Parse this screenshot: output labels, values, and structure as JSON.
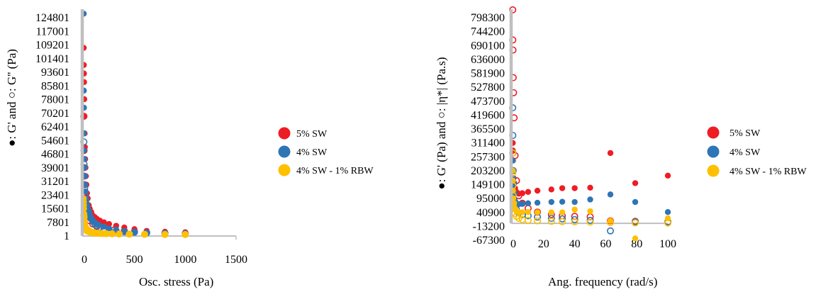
{
  "chart_data": [
    {
      "type": "scatter",
      "xlabel": "Osc. stress (Pa)",
      "ylabel": "●: G' and ○: G'' (Pa)",
      "xlim": [
        0,
        1500
      ],
      "ylim": [
        1,
        132601
      ],
      "x_ticks": [
        "0",
        "500",
        "1000",
        "1500"
      ],
      "y_ticks": [
        "1",
        "7801",
        "15601",
        "23401",
        "31201",
        "39001",
        "46801",
        "54601",
        "62401",
        "70201",
        "78001",
        "85801",
        "93601",
        "101401",
        "109201",
        "117001",
        "124801"
      ],
      "legend": "right",
      "series": [
        {
          "name": "5% SW",
          "color": "#ee1c25",
          "filled": [
            [
              1,
              110000
            ],
            [
              2,
              100000
            ],
            [
              3,
              95000
            ],
            [
              4,
              90000
            ],
            [
              6,
              80000
            ],
            [
              8,
              70000
            ],
            [
              10,
              60000
            ],
            [
              12,
              52000
            ],
            [
              15,
              45000
            ],
            [
              18,
              40000
            ],
            [
              22,
              35000
            ],
            [
              27,
              30000
            ],
            [
              33,
              25000
            ],
            [
              40,
              22000
            ],
            [
              50,
              18000
            ],
            [
              60,
              16000
            ],
            [
              75,
              14000
            ],
            [
              90,
              12000
            ],
            [
              110,
              11000
            ],
            [
              130,
              10000
            ],
            [
              160,
              9000
            ],
            [
              200,
              8000
            ],
            [
              250,
              7000
            ],
            [
              320,
              6000
            ],
            [
              400,
              5000
            ],
            [
              500,
              4000
            ],
            [
              620,
              3000
            ],
            [
              800,
              2500
            ],
            [
              1000,
              2200
            ]
          ],
          "hollow": [
            [
              2,
              70000
            ],
            [
              4,
              50000
            ],
            [
              6,
              40000
            ],
            [
              10,
              30000
            ],
            [
              15,
              22000
            ],
            [
              22,
              17000
            ],
            [
              30,
              14000
            ],
            [
              45,
              11000
            ],
            [
              60,
              9000
            ],
            [
              90,
              7000
            ],
            [
              130,
              5500
            ],
            [
              200,
              4500
            ],
            [
              300,
              3500
            ],
            [
              400,
              3000
            ],
            [
              500,
              2500
            ],
            [
              620,
              2000
            ],
            [
              800,
              1700
            ],
            [
              1000,
              1500
            ]
          ]
        },
        {
          "name": "4% SW",
          "color": "#2e75b6",
          "filled": [
            [
              1,
              130000
            ],
            [
              2,
              85000
            ],
            [
              3,
              75000
            ],
            [
              4,
              60000
            ],
            [
              5,
              50000
            ],
            [
              7,
              45000
            ],
            [
              10,
              40000
            ],
            [
              12,
              35000
            ],
            [
              15,
              30000
            ],
            [
              20,
              26000
            ],
            [
              25,
              22000
            ],
            [
              30,
              19000
            ],
            [
              40,
              17000
            ],
            [
              50,
              15000
            ],
            [
              60,
              13000
            ],
            [
              70,
              11000
            ],
            [
              80,
              10000
            ],
            [
              100,
              8500
            ],
            [
              120,
              7500
            ],
            [
              150,
              6500
            ],
            [
              200,
              5500
            ],
            [
              250,
              4500
            ],
            [
              320,
              3800
            ],
            [
              400,
              3000
            ],
            [
              500,
              2500
            ],
            [
              620,
              2000
            ],
            [
              800,
              1800
            ],
            [
              1000,
              1600
            ]
          ],
          "hollow": [
            [
              2,
              55000
            ],
            [
              4,
              42000
            ],
            [
              6,
              35000
            ],
            [
              10,
              28000
            ],
            [
              14,
              24000
            ],
            [
              20,
              21000
            ],
            [
              30,
              18000
            ],
            [
              40,
              15000
            ],
            [
              50,
              13000
            ],
            [
              60,
              11500
            ],
            [
              75,
              10000
            ],
            [
              90,
              8500
            ],
            [
              110,
              7000
            ],
            [
              130,
              6000
            ],
            [
              160,
              5000
            ],
            [
              200,
              4200
            ],
            [
              250,
              3500
            ],
            [
              320,
              3000
            ],
            [
              400,
              2500
            ],
            [
              500,
              2200
            ],
            [
              620,
              1800
            ],
            [
              800,
              1500
            ],
            [
              1000,
              1300
            ]
          ]
        },
        {
          "name": "4% SW - 1% RBW",
          "color": "#ffc000",
          "filled": [
            [
              1,
              22000
            ],
            [
              2,
              20000
            ],
            [
              3,
              18000
            ],
            [
              4,
              16000
            ],
            [
              6,
              13000
            ],
            [
              8,
              11000
            ],
            [
              10,
              9000
            ],
            [
              15,
              7000
            ],
            [
              20,
              5500
            ],
            [
              30,
              4500
            ],
            [
              40,
              3800
            ],
            [
              55,
              3200
            ],
            [
              70,
              2800
            ],
            [
              90,
              2400
            ],
            [
              110,
              2100
            ],
            [
              140,
              1900
            ],
            [
              180,
              1700
            ],
            [
              220,
              1500
            ],
            [
              280,
              1400
            ],
            [
              350,
              1200
            ],
            [
              450,
              1100
            ],
            [
              600,
              1000
            ],
            [
              800,
              900
            ],
            [
              1000,
              800
            ]
          ],
          "hollow": [
            [
              2,
              12000
            ],
            [
              4,
              9000
            ],
            [
              6,
              7000
            ],
            [
              10,
              5500
            ],
            [
              15,
              4500
            ],
            [
              20,
              3800
            ],
            [
              30,
              3200
            ],
            [
              40,
              2800
            ],
            [
              55,
              2500
            ],
            [
              70,
              2200
            ],
            [
              90,
              2000
            ],
            [
              110,
              1800
            ],
            [
              140,
              1600
            ],
            [
              180,
              1500
            ],
            [
              220,
              1400
            ],
            [
              280,
              1300
            ],
            [
              350,
              1200
            ],
            [
              450,
              1100
            ],
            [
              600,
              1000
            ],
            [
              800,
              950
            ],
            [
              1000,
              900
            ]
          ]
        }
      ]
    },
    {
      "type": "scatter",
      "xlabel": "Ang. frequency (rad/s)",
      "ylabel": "●: G' (Pa) and ○: |η*| (Pa.s)",
      "xlim": [
        0,
        100
      ],
      "ylim": [
        -67300,
        852400
      ],
      "x_ticks": [
        "0",
        "20",
        "40",
        "60",
        "80",
        "100"
      ],
      "y_ticks": [
        "-67300",
        "-13200",
        "40900",
        "95000",
        "149100",
        "203200",
        "257300",
        "311400",
        "365500",
        "419600",
        "473700",
        "527800",
        "581900",
        "636000",
        "690100",
        "744200",
        "798300"
      ],
      "legend": "right",
      "series": [
        {
          "name": "5% SW",
          "color": "#ee1c25",
          "filled": [
            [
              0.1,
              320000
            ],
            [
              0.16,
              290000
            ],
            [
              0.25,
              250000
            ],
            [
              0.4,
              210000
            ],
            [
              0.63,
              180000
            ],
            [
              1,
              160000
            ],
            [
              1.6,
              140000
            ],
            [
              2.5,
              125000
            ],
            [
              4,
              118000
            ],
            [
              6.3,
              120000
            ],
            [
              10,
              125000
            ],
            [
              16,
              130000
            ],
            [
              25,
              135000
            ],
            [
              32,
              140000
            ],
            [
              40,
              140000
            ],
            [
              50,
              142000
            ],
            [
              63,
              280000
            ],
            [
              79,
              160000
            ],
            [
              100,
              190000
            ]
          ],
          "hollow": [
            [
              0.1,
              850000
            ],
            [
              0.16,
              730000
            ],
            [
              0.25,
              690000
            ],
            [
              0.4,
              580000
            ],
            [
              0.63,
              520000
            ],
            [
              1,
              420000
            ],
            [
              1.6,
              270000
            ],
            [
              2.5,
              170000
            ],
            [
              4,
              110000
            ],
            [
              6.3,
              80000
            ],
            [
              10,
              60000
            ],
            [
              16,
              45000
            ],
            [
              25,
              35000
            ],
            [
              32,
              30000
            ],
            [
              40,
              28000
            ],
            [
              50,
              26000
            ],
            [
              63,
              10000
            ],
            [
              79,
              8000
            ],
            [
              100,
              6000
            ]
          ]
        },
        {
          "name": "4% SW",
          "color": "#2e75b6",
          "filled": [
            [
              0.1,
              250000
            ],
            [
              0.16,
              210000
            ],
            [
              0.25,
              180000
            ],
            [
              0.4,
              150000
            ],
            [
              0.63,
              120000
            ],
            [
              1,
              100000
            ],
            [
              1.6,
              88000
            ],
            [
              2.5,
              80000
            ],
            [
              4,
              76000
            ],
            [
              6.3,
              78000
            ],
            [
              10,
              80000
            ],
            [
              16,
              82000
            ],
            [
              25,
              85000
            ],
            [
              32,
              86000
            ],
            [
              40,
              85000
            ],
            [
              50,
              95000
            ],
            [
              63,
              115000
            ],
            [
              79,
              85000
            ],
            [
              100,
              45000
            ]
          ],
          "hollow": [
            [
              0.1,
              460000
            ],
            [
              0.16,
              350000
            ],
            [
              0.25,
              280000
            ],
            [
              0.4,
              210000
            ],
            [
              0.63,
              160000
            ],
            [
              1,
              120000
            ],
            [
              1.6,
              80000
            ],
            [
              2.5,
              55000
            ],
            [
              4,
              42000
            ],
            [
              6.3,
              35000
            ],
            [
              10,
              30000
            ],
            [
              16,
              25000
            ],
            [
              25,
              20000
            ],
            [
              32,
              18000
            ],
            [
              40,
              15000
            ],
            [
              50,
              12000
            ],
            [
              63,
              -30000
            ],
            [
              79,
              6000
            ],
            [
              100,
              5000
            ]
          ]
        },
        {
          "name": "4% SW - 1% RBW",
          "color": "#ffc000",
          "filled": [
            [
              0.1,
              210000
            ],
            [
              0.16,
              170000
            ],
            [
              0.25,
              130000
            ],
            [
              0.4,
              100000
            ],
            [
              0.63,
              80000
            ],
            [
              1,
              65000
            ],
            [
              1.6,
              55000
            ],
            [
              2.5,
              48000
            ],
            [
              4,
              45000
            ],
            [
              6.3,
              44000
            ],
            [
              10,
              45000
            ],
            [
              16,
              44000
            ],
            [
              25,
              44000
            ],
            [
              32,
              44000
            ],
            [
              40,
              55000
            ],
            [
              50,
              48000
            ],
            [
              63,
              10000
            ],
            [
              79,
              -60000
            ],
            [
              100,
              20000
            ]
          ],
          "hollow": [
            [
              0.1,
              280000
            ],
            [
              0.16,
              200000
            ],
            [
              0.25,
              150000
            ],
            [
              0.4,
              110000
            ],
            [
              0.63,
              80000
            ],
            [
              1,
              60000
            ],
            [
              1.6,
              40000
            ],
            [
              2.5,
              28000
            ],
            [
              4,
              20000
            ],
            [
              6.3,
              15000
            ],
            [
              10,
              12000
            ],
            [
              16,
              10000
            ],
            [
              25,
              8000
            ],
            [
              32,
              7000
            ],
            [
              40,
              6000
            ],
            [
              50,
              5000
            ],
            [
              63,
              3000
            ],
            [
              79,
              2000
            ],
            [
              100,
              1500
            ]
          ]
        }
      ]
    }
  ]
}
